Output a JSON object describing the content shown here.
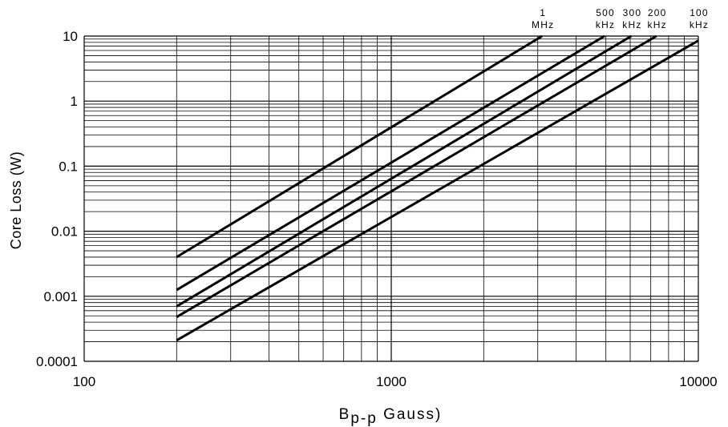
{
  "chart_data": {
    "type": "line",
    "xlabel_main": "B",
    "xlabel_sub": "p-p",
    "xlabel_rest": " Gauss)",
    "ylabel": "Core Loss (W)",
    "x_scale": "log",
    "y_scale": "log",
    "xlim": [
      100,
      10000
    ],
    "ylim": [
      0.0001,
      10
    ],
    "x_tick_labels": [
      "100",
      "1000",
      "10000"
    ],
    "y_tick_labels": [
      "0.0001",
      "0.001",
      "0.01",
      "0.1",
      "1",
      "10"
    ],
    "grid": true,
    "line_color": "#000000",
    "series": [
      {
        "label_line1": "1",
        "label_line2": "MHz",
        "x": [
          200,
          3100
        ],
        "y": [
          0.004,
          10
        ]
      },
      {
        "label_line1": "500",
        "label_line2": "kHz",
        "x": [
          200,
          4950
        ],
        "y": [
          0.00125,
          10
        ]
      },
      {
        "label_line1": "300",
        "label_line2": "kHz",
        "x": [
          200,
          6050
        ],
        "y": [
          0.0007,
          10
        ]
      },
      {
        "label_line1": "200",
        "label_line2": "kHz",
        "x": [
          200,
          7300
        ],
        "y": [
          0.00048,
          10
        ]
      },
      {
        "label_line1": "100",
        "label_line2": "kHz",
        "x": [
          200,
          10000
        ],
        "y": [
          0.00021,
          8.5
        ]
      }
    ]
  }
}
